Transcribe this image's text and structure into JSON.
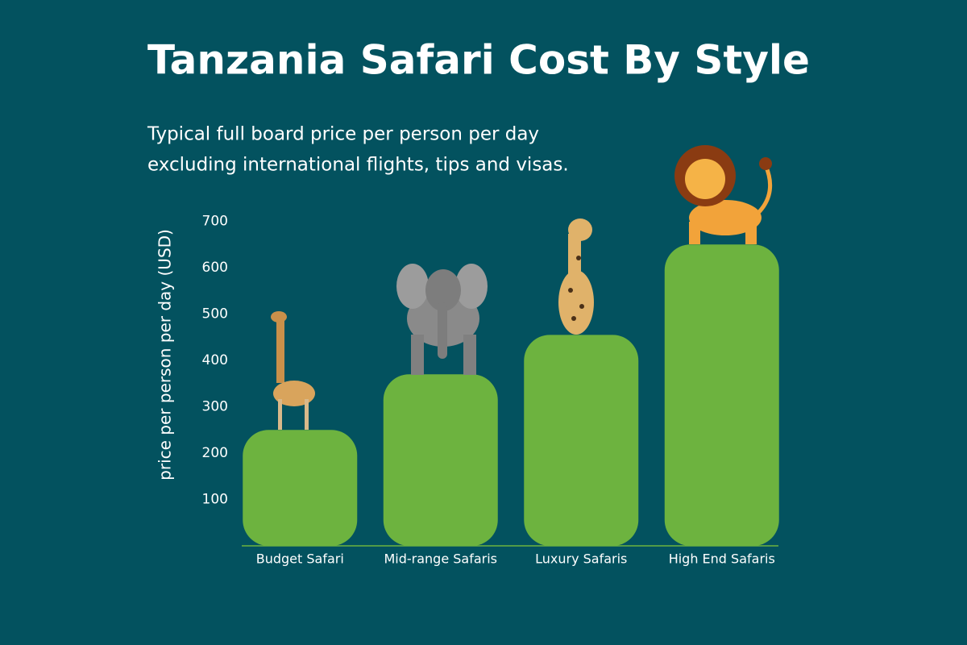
{
  "chart_data": {
    "type": "bar",
    "title": "Tanzania Safari Cost By Style",
    "subtitle": [
      "Typical full board price per person per day",
      "excluding international flights, tips and visas."
    ],
    "y_label": "price per person per day (USD)",
    "categories": [
      "Budget Safari",
      "Mid-range Safaris",
      "Luxury Safaris",
      "High End  Safaris"
    ],
    "values": [
      250,
      370,
      455,
      650
    ],
    "color": "#6db33f",
    "ylim": [
      0,
      700
    ],
    "yticks": [
      100,
      200,
      300,
      400,
      500,
      600,
      700
    ],
    "grid": false
  }
}
